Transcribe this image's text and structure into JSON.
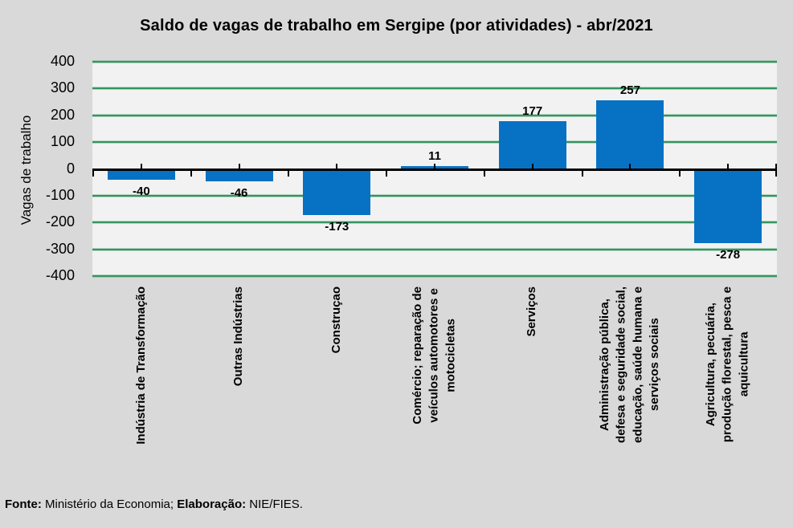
{
  "chart_data": {
    "type": "bar",
    "title": "Saldo de vagas de trabalho em Sergipe (por atividades) - abr/2021",
    "ylabel": "Vagas de trabalho",
    "xlabel": "",
    "categories": [
      "Indústria de Transformação",
      "Outras Indústrias",
      "Construçao",
      "Comércio; reparação de\nveículos automotores e\nmotocicletas",
      "Serviços",
      "Administração pública,\ndefesa e seguridade social,\neducação, saúde humana e\nserviços sociais",
      "Agricultura, pecuária,\nprodução florestal, pesca e\naquicultura"
    ],
    "values": [
      -40,
      -46,
      -173,
      11,
      177,
      257,
      -278
    ],
    "ylim": [
      -400,
      400
    ],
    "ytick_interval": 100,
    "grid": true,
    "legend": false,
    "bar_color": "#0772C4",
    "gridline_color": "#35945F",
    "plot_bg": "#F2F2F2",
    "page_bg": "#D9D9D9",
    "axis_color": "#000000"
  },
  "footer": {
    "source_label": "Fonte:",
    "source_text": " Ministério da Economia; ",
    "elaboration_label": "Elaboração:",
    "elaboration_text": " NIE/FIES."
  }
}
